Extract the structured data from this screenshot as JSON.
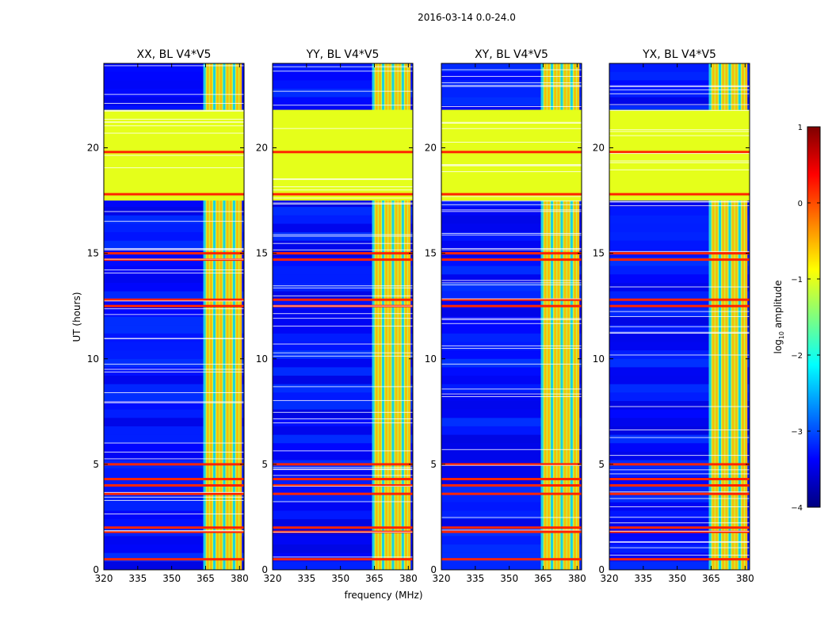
{
  "figure": {
    "title": "2016-03-14 0.0-24.0",
    "xlabel": "frequency (MHz)",
    "ylabel": "UT (hours)"
  },
  "colorbar": {
    "label_main": "log",
    "label_sub": "10",
    "label_tail": " amplitude",
    "range": [
      -4,
      1
    ],
    "ticks": [
      1,
      0,
      -1,
      -2,
      -3,
      -4
    ],
    "tick_labels": [
      "1",
      "0",
      "−1",
      "−2",
      "−3",
      "−4"
    ],
    "colors": [
      "#00007f",
      "#0000ff",
      "#007fff",
      "#00ffff",
      "#7fff7f",
      "#ffff00",
      "#ff7f00",
      "#ff0000",
      "#7f0000"
    ]
  },
  "chart_data": {
    "type": "heatmap",
    "x_range": [
      320,
      382
    ],
    "x_ticks": [
      320,
      335,
      350,
      365,
      380
    ],
    "y_range": [
      0,
      24
    ],
    "y_ticks": [
      0,
      5,
      10,
      15,
      20
    ],
    "noise_level": -3.3,
    "bright_band_mhz": [
      364,
      381
    ],
    "bright_band_level": -1.2,
    "saturated_hours": [
      17.5,
      21.8
    ],
    "saturated_level": -1.0,
    "flag_hours": [
      0.5,
      1.8,
      2.0,
      3.6,
      4.0,
      4.3,
      5.0,
      14.7,
      15.0,
      12.5,
      12.8,
      17.8,
      19.8
    ],
    "flag_level": 0.2,
    "panels": [
      {
        "title": "XX, BL V4*V5"
      },
      {
        "title": "YY, BL V4*V5"
      },
      {
        "title": "XY, BL V4*V5"
      },
      {
        "title": "YX, BL V4*V5"
      }
    ]
  }
}
